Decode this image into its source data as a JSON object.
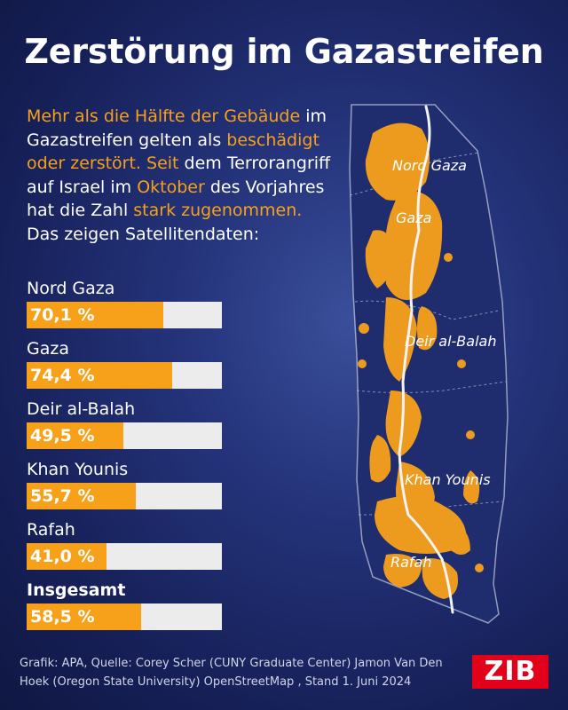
{
  "title": "Zerstörung im Gazastreifen",
  "intro": [
    {
      "text": "Mehr als die Hälfte der Gebäude",
      "highlight": true
    },
    {
      "text": " im Gazastreifen gelten als ",
      "highlight": false
    },
    {
      "text": "beschädigt oder zerstört. Seit",
      "highlight": true
    },
    {
      "text": " dem Terrorangriff auf Israel im ",
      "highlight": false
    },
    {
      "text": "Oktober",
      "highlight": true
    },
    {
      "text": " des Vorjahres hat die Zahl ",
      "highlight": false
    },
    {
      "text": "stark zugenommen.",
      "highlight": true
    },
    {
      "text": " Das zeigen Satellitendaten:",
      "highlight": false
    }
  ],
  "colors": {
    "accent": "#f7a11a",
    "track": "#ececec",
    "logo": "#e2001a"
  },
  "chart_data": {
    "type": "bar",
    "orientation": "horizontal",
    "categories": [
      "Nord Gaza",
      "Gaza",
      "Deir al-Balah",
      "Khan Younis",
      "Rafah",
      "Insgesamt"
    ],
    "values": [
      70.1,
      74.4,
      49.5,
      55.7,
      41.0,
      58.5
    ],
    "value_labels": [
      "70,1 %",
      "74,4 %",
      "49,5 %",
      "55,7 %",
      "41,0 %",
      "58,5 %"
    ],
    "bold_categories": [
      "Insgesamt"
    ],
    "xlim": [
      0,
      100
    ],
    "unit": "%"
  },
  "map": {
    "labels": [
      "Nord Gaza",
      "Gaza",
      "Deir al-Balah",
      "Khan Younis",
      "Rafah"
    ]
  },
  "source": "Grafik: APA, Quelle: Corey Scher (CUNY Graduate Center) Jamon Van Den Hoek (Oregon State University) OpenStreetMap , Stand 1. Juni 2024",
  "logo": "ZIB"
}
